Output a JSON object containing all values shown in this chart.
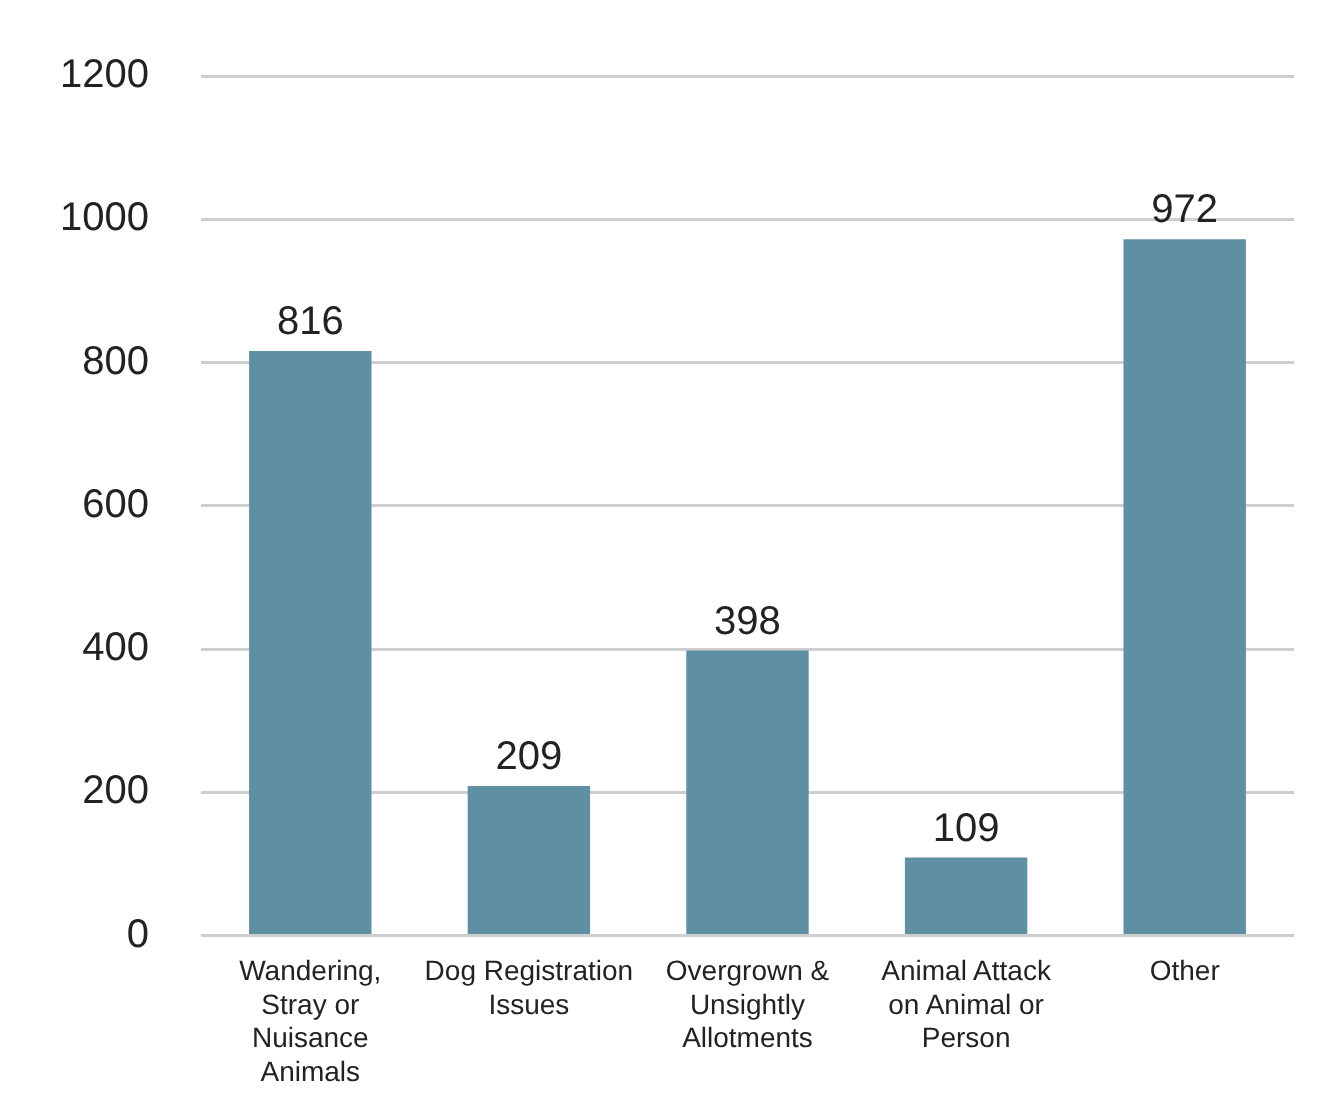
{
  "chart_data": {
    "type": "bar",
    "categories": [
      "Wandering, Stray or Nuisance Animals",
      "Dog Registration Issues",
      "Overgrown & Unsightly Allotments",
      "Animal Attack on Animal or Person",
      "Other"
    ],
    "values": [
      816,
      209,
      398,
      109,
      972
    ],
    "color": "#5f8fa3",
    "ylim": [
      0,
      1200
    ],
    "yticks": [
      0,
      200,
      400,
      600,
      800,
      1000,
      1200
    ],
    "grid": "y",
    "data_labels": true,
    "legend": false
  }
}
